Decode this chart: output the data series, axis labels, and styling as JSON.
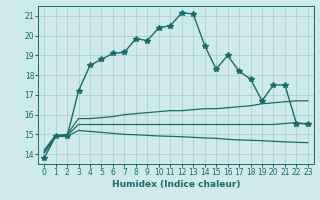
{
  "xlabel": "Humidex (Indice chaleur)",
  "bg_color": "#ceeaea",
  "grid_color": "#b0d0d0",
  "line_color": "#1a6b6b",
  "xlim": [
    -0.5,
    23.5
  ],
  "ylim": [
    13.5,
    21.5
  ],
  "xticks": [
    0,
    1,
    2,
    3,
    4,
    5,
    6,
    7,
    8,
    9,
    10,
    11,
    12,
    13,
    14,
    15,
    16,
    17,
    18,
    19,
    20,
    21,
    22,
    23
  ],
  "yticks": [
    14,
    15,
    16,
    17,
    18,
    19,
    20,
    21
  ],
  "series1_x": [
    0,
    1,
    2,
    3,
    4,
    5,
    6,
    7,
    8,
    9,
    10,
    11,
    12,
    13,
    14,
    15,
    16,
    17,
    18,
    19,
    20,
    21,
    22,
    23
  ],
  "series1_y": [
    13.8,
    14.9,
    14.9,
    17.2,
    18.5,
    18.8,
    19.1,
    19.15,
    19.85,
    19.75,
    20.4,
    20.5,
    21.15,
    21.1,
    19.5,
    18.3,
    19.0,
    18.2,
    17.8,
    16.7,
    17.5,
    17.5,
    15.55,
    15.55
  ],
  "series2_x": [
    0,
    1,
    2,
    3,
    4,
    5,
    6,
    7,
    8,
    9,
    10,
    11,
    12,
    13,
    14,
    15,
    16,
    17,
    18,
    19,
    20,
    21,
    22,
    23
  ],
  "series2_y": [
    14.2,
    14.95,
    15.0,
    15.8,
    15.8,
    15.85,
    15.9,
    16.0,
    16.05,
    16.1,
    16.15,
    16.2,
    16.2,
    16.25,
    16.3,
    16.3,
    16.35,
    16.4,
    16.45,
    16.55,
    16.6,
    16.65,
    16.7,
    16.7
  ],
  "series3_x": [
    0,
    1,
    2,
    3,
    4,
    5,
    6,
    7,
    8,
    9,
    10,
    11,
    12,
    13,
    14,
    15,
    16,
    17,
    18,
    19,
    20,
    21,
    22,
    23
  ],
  "series3_y": [
    14.1,
    14.9,
    14.95,
    15.5,
    15.5,
    15.5,
    15.5,
    15.5,
    15.5,
    15.5,
    15.5,
    15.5,
    15.5,
    15.5,
    15.5,
    15.5,
    15.5,
    15.5,
    15.5,
    15.5,
    15.5,
    15.55,
    15.6,
    15.5
  ],
  "series4_x": [
    0,
    1,
    2,
    3,
    4,
    5,
    6,
    7,
    8,
    9,
    10,
    11,
    12,
    13,
    14,
    15,
    16,
    17,
    18,
    19,
    20,
    21,
    22,
    23
  ],
  "series4_y": [
    14.05,
    14.9,
    14.9,
    15.2,
    15.15,
    15.1,
    15.05,
    15.0,
    14.98,
    14.95,
    14.92,
    14.9,
    14.88,
    14.85,
    14.82,
    14.8,
    14.75,
    14.72,
    14.7,
    14.68,
    14.65,
    14.62,
    14.6,
    14.58
  ]
}
